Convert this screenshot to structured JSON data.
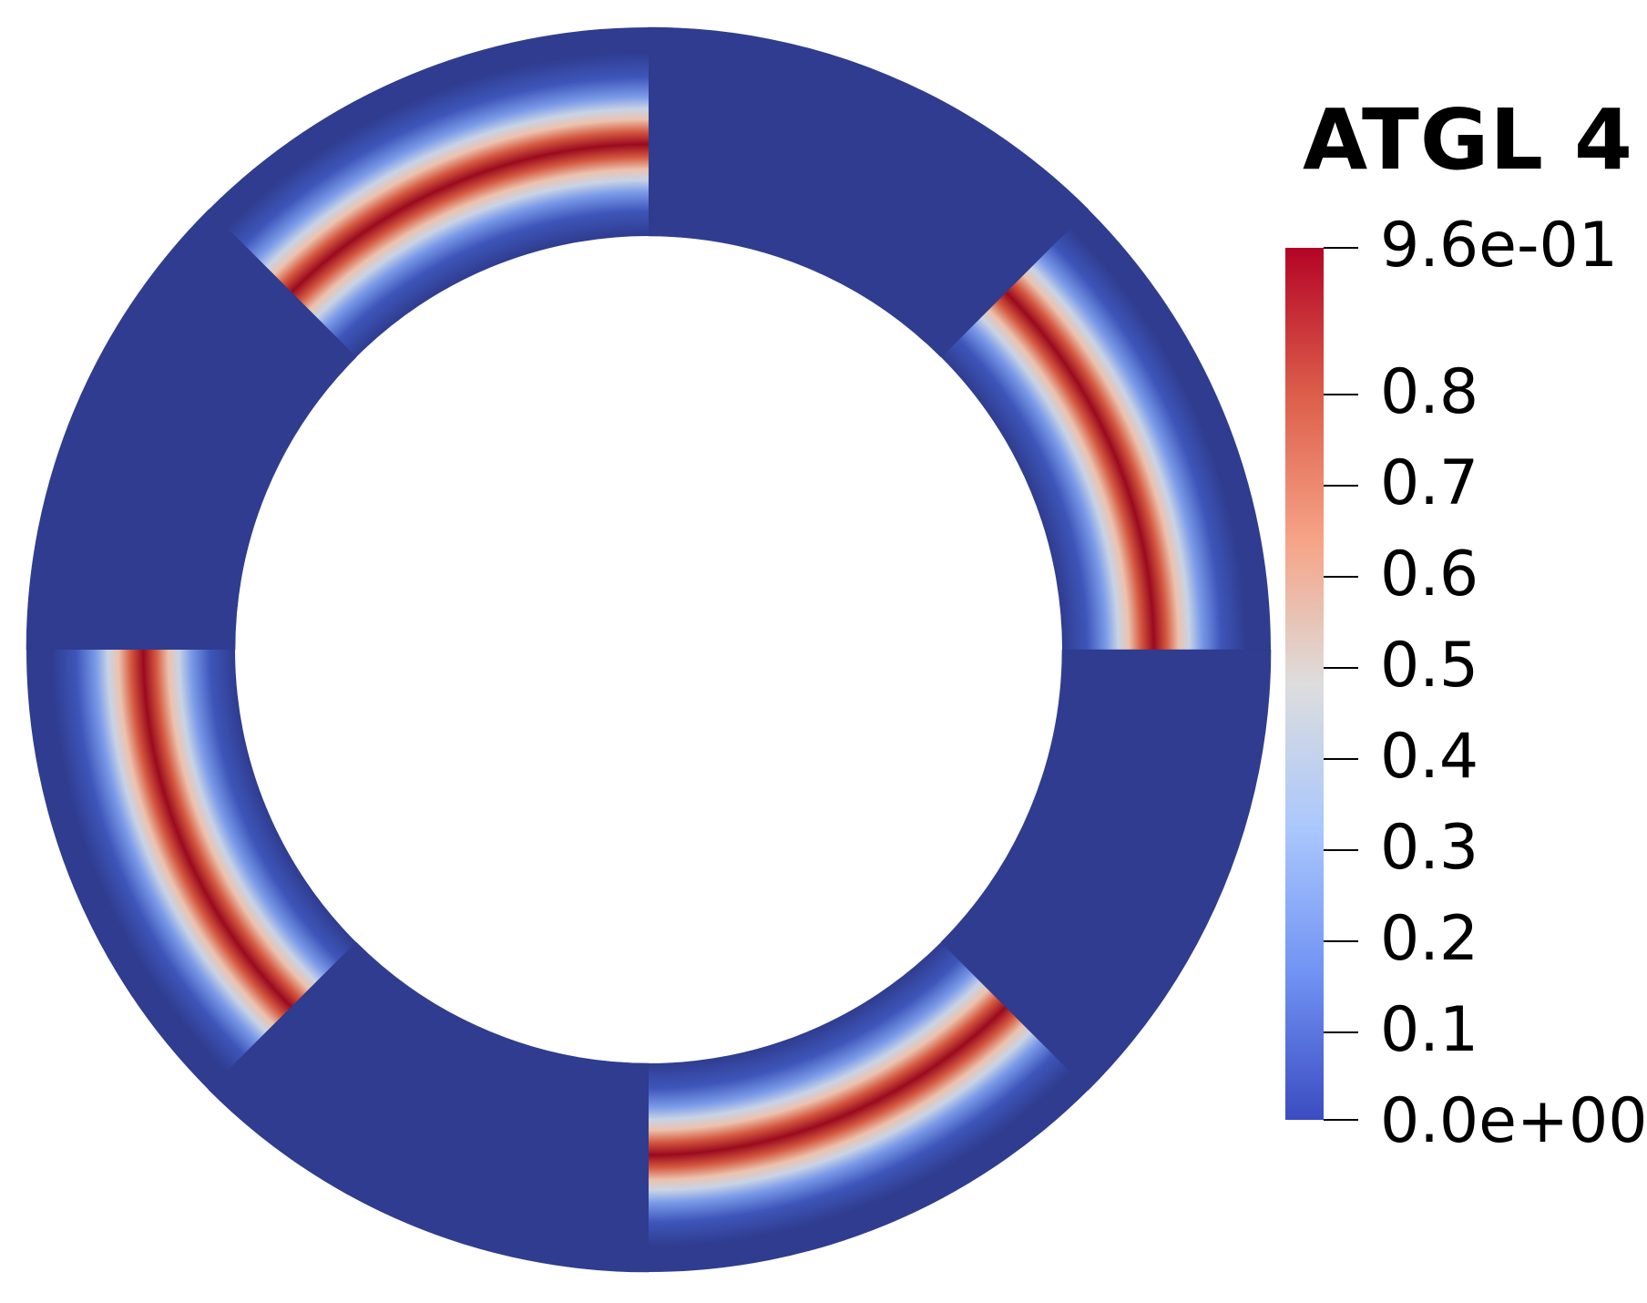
{
  "legend": {
    "title": "ATGL 4",
    "range": [
      0.0,
      0.96
    ],
    "max_label": "9.6e-01",
    "min_label": "0.0e+00",
    "tick_labels": [
      "0.8",
      "0.7",
      "0.6",
      "0.5",
      "0.4",
      "0.3",
      "0.2",
      "0.1"
    ],
    "colormap": "cool-to-warm",
    "colors": [
      "#3b4cc0",
      "#7092f3",
      "#aac7fd",
      "#dddddd",
      "#f6a385",
      "#dc5d4a",
      "#b40426"
    ]
  },
  "field": {
    "background_color": "#2f3c8f",
    "peak_color": "#9a0a1e",
    "sectors": [
      "active",
      "inactive",
      "active",
      "inactive",
      "active",
      "inactive",
      "active",
      "inactive"
    ]
  }
}
